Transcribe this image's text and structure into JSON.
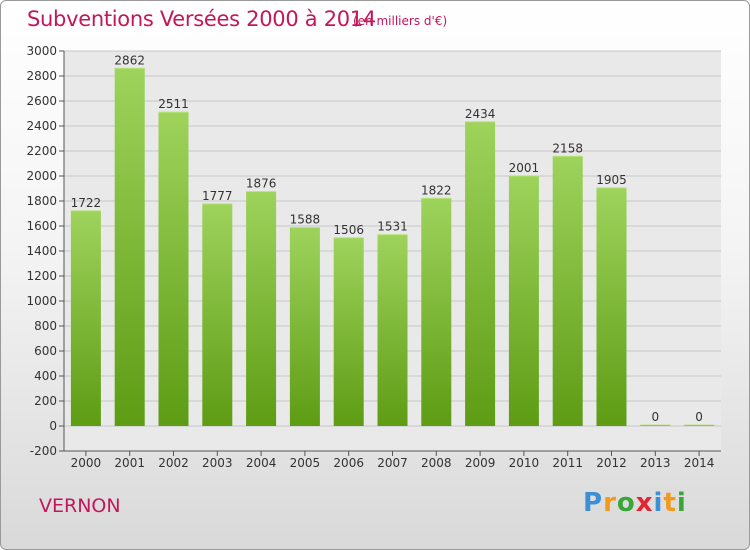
{
  "header": {
    "title": "Subventions Versées 2000 à 2014",
    "subtitle": "(en milliers d'€)"
  },
  "footer": {
    "commune": "VERNON",
    "logo": "Proxiti"
  },
  "colors": {
    "title": "#c2185b",
    "bar_top": "#9ed35c",
    "bar_bottom": "#5e9c14",
    "grid": "#c8c8c8",
    "logo_letters": [
      "#3a8fd6",
      "#f29a1e",
      "#3aa63a",
      "#e6232e",
      "#3a8fd6",
      "#f29a1e",
      "#3aa63a"
    ]
  },
  "chart_data": {
    "type": "bar",
    "title": "Subventions Versées 2000 à 2014",
    "subtitle": "(en milliers d'€)",
    "categories": [
      "2000",
      "2001",
      "2002",
      "2003",
      "2004",
      "2005",
      "2006",
      "2007",
      "2008",
      "2009",
      "2010",
      "2011",
      "2012",
      "2013",
      "2014"
    ],
    "values": [
      1722,
      2862,
      2511,
      1777,
      1876,
      1588,
      1506,
      1531,
      1822,
      2434,
      2001,
      2158,
      1905,
      0,
      0
    ],
    "ylim": [
      -200,
      3000
    ],
    "ytick_step": 200,
    "grid": true,
    "show_data_labels": true
  }
}
